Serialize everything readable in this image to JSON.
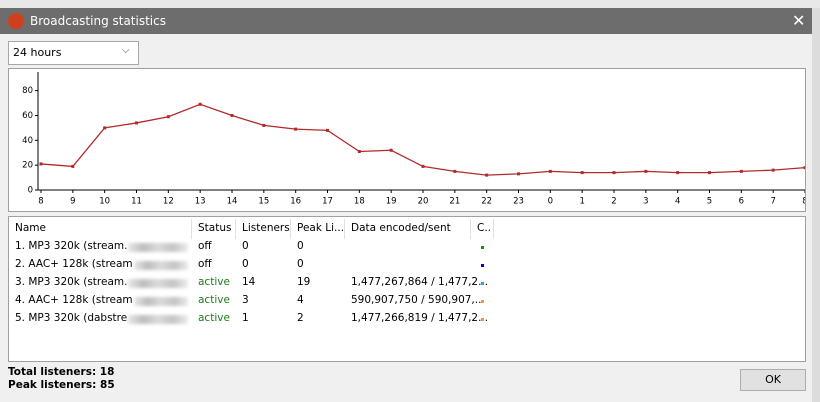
{
  "window_title": "Broadcasting statistics",
  "period_dropdown": "24 hours",
  "chart_data": {
    "type": "line",
    "categories": [
      "8",
      "9",
      "10",
      "11",
      "12",
      "13",
      "14",
      "15",
      "16",
      "17",
      "18",
      "19",
      "20",
      "21",
      "22",
      "23",
      "0",
      "1",
      "2",
      "3",
      "4",
      "5",
      "6",
      "7",
      "8"
    ],
    "values": [
      21,
      19,
      50,
      54,
      59,
      69,
      60,
      52,
      49,
      48,
      31,
      32,
      19,
      15,
      12,
      13,
      15,
      14,
      14,
      15,
      14,
      14,
      15,
      16,
      18
    ],
    "color": "#b22a2a",
    "ylim": [
      0,
      95
    ],
    "yticks": [
      0,
      20,
      40,
      60,
      80
    ],
    "grid": false
  },
  "table": {
    "columns": [
      "Name",
      "Status",
      "Listeners",
      "Peak Li...",
      "Data encoded/sent",
      "C.."
    ],
    "rows": [
      {
        "name": "1. MP3 320k (stream.",
        "status": "off",
        "listeners": 0,
        "peak": 0,
        "data": null,
        "color": "#00a000"
      },
      {
        "name": "2. AAC+ 128k (stream",
        "status": "off",
        "listeners": 0,
        "peak": 0,
        "data": null,
        "color": "#0000e0"
      },
      {
        "name": "3. MP3 320k (stream.",
        "status": "active",
        "listeners": 14,
        "peak": 19,
        "data": "1,477,267,864 / 1,477,2...",
        "color": "#20a8e0"
      },
      {
        "name": "4. AAC+ 128k (stream",
        "status": "active",
        "listeners": 3,
        "peak": 4,
        "data": "590,907,750 / 590,907,...",
        "color": "#ff9040"
      },
      {
        "name": "5. MP3 320k (dabstre",
        "status": "active",
        "listeners": 1,
        "peak": 2,
        "data": "1,477,266,819 / 1,477,2...",
        "color": "#ff9040"
      }
    ]
  },
  "footer": {
    "total_listeners": "Total listeners: 18",
    "peak_listeners": "Peak listeners: 85"
  },
  "ok_button": "OK"
}
